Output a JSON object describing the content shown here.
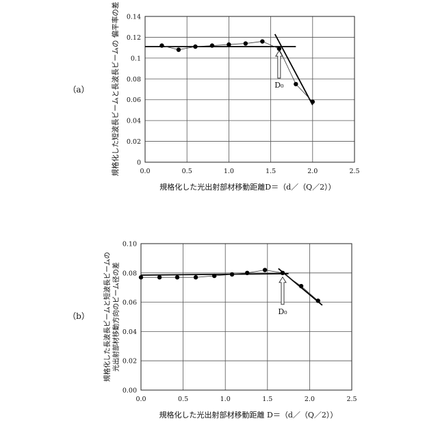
{
  "chart_data": [
    {
      "panel_label": "（a）",
      "type": "scatter",
      "xlabel": "規格化した光出射部材移動距離D＝（d／（Q／2））",
      "ylabel": "規格化した短波長ビームと長波長ビームの 偏平率の差",
      "xlim": [
        0,
        2.5
      ],
      "ylim": [
        0,
        0.14
      ],
      "x_ticks": [
        "0.0",
        "0.5",
        "1.0",
        "1.5",
        "2.0",
        "2.5"
      ],
      "y_ticks": [
        "0",
        "0.02",
        "0.04",
        "0.06",
        "0.08",
        "0.1",
        "0.12",
        "0.14"
      ],
      "grid": true,
      "points": [
        {
          "x": 0.2,
          "y": 0.112
        },
        {
          "x": 0.4,
          "y": 0.108
        },
        {
          "x": 0.6,
          "y": 0.111
        },
        {
          "x": 0.8,
          "y": 0.112
        },
        {
          "x": 1.0,
          "y": 0.113
        },
        {
          "x": 1.2,
          "y": 0.114
        },
        {
          "x": 1.4,
          "y": 0.116
        },
        {
          "x": 1.6,
          "y": 0.109
        },
        {
          "x": 1.8,
          "y": 0.075
        },
        {
          "x": 2.0,
          "y": 0.058
        }
      ],
      "fit_lines": [
        {
          "x": [
            0.0,
            1.8
          ],
          "y": [
            0.111,
            0.111
          ]
        },
        {
          "x": [
            1.55,
            2.0
          ],
          "y": [
            0.123,
            0.055
          ]
        }
      ],
      "annotation": {
        "text": "D₀",
        "x": 1.6,
        "y": 0.111
      }
    },
    {
      "panel_label": "（b）",
      "type": "scatter",
      "xlabel": "規格化した光出射部材移動距離 D＝（d／（Q／2））",
      "ylabel_lines": [
        "規格化した長波長ビームと短波長ビームの",
        "光出射部材移動方向のビーム径の差"
      ],
      "xlim": [
        0,
        2.5
      ],
      "ylim": [
        0,
        0.1
      ],
      "x_ticks": [
        "0.0",
        "0.5",
        "1.0",
        "1.5",
        "2.0",
        "2.5"
      ],
      "y_ticks": [
        "0.00",
        "0.02",
        "0.04",
        "0.06",
        "0.08",
        "0.10"
      ],
      "grid": true,
      "points": [
        {
          "x": 0.0,
          "y": 0.077
        },
        {
          "x": 0.22,
          "y": 0.077
        },
        {
          "x": 0.43,
          "y": 0.077
        },
        {
          "x": 0.65,
          "y": 0.077
        },
        {
          "x": 0.87,
          "y": 0.078
        },
        {
          "x": 1.08,
          "y": 0.079
        },
        {
          "x": 1.26,
          "y": 0.08
        },
        {
          "x": 1.47,
          "y": 0.082
        },
        {
          "x": 1.68,
          "y": 0.08
        },
        {
          "x": 1.9,
          "y": 0.071
        },
        {
          "x": 2.1,
          "y": 0.061
        }
      ],
      "fit_lines": [
        {
          "x": [
            0.0,
            1.75
          ],
          "y": [
            0.0785,
            0.0795
          ]
        },
        {
          "x": [
            1.63,
            2.15
          ],
          "y": [
            0.083,
            0.058
          ]
        }
      ],
      "annotation": {
        "text": "D₀",
        "x": 1.68,
        "y": 0.08
      }
    }
  ]
}
